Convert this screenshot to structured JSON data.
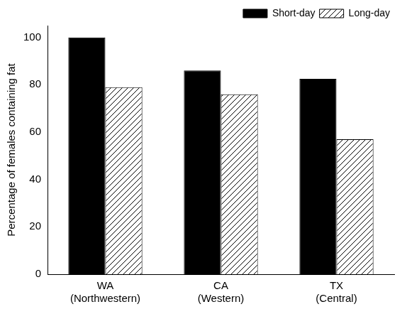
{
  "chart_data": {
    "type": "bar",
    "y_label": "Percentage of females containing fat",
    "categories": [
      [
        "WA",
        "(Northwestern)"
      ],
      [
        "CA",
        "(Western)"
      ],
      [
        "TX",
        "(Central)"
      ]
    ],
    "series": [
      {
        "name": "Short-day",
        "color": "#000000",
        "marker": "solid",
        "values": [
          100,
          86,
          82.5
        ]
      },
      {
        "name": "Long-day",
        "color": "#000000",
        "marker": "hatched",
        "values": [
          79,
          76,
          57
        ]
      }
    ],
    "ylim": [
      0,
      105
    ],
    "yticks": [
      0,
      20,
      40,
      60,
      80,
      100
    ],
    "grid": false,
    "legend": "upper right"
  }
}
